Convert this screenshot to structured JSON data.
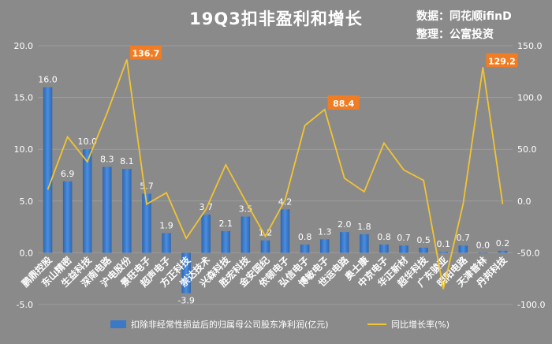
{
  "chart_data": {
    "type": "bar",
    "title": "19Q3扣非盈利和增长",
    "source_lines": [
      "数据：同花顺ifinD",
      "整理：公富投资"
    ],
    "categories": [
      "鹏鼎控股",
      "东山精密",
      "生益科技",
      "深南电路",
      "沪电股份",
      "景旺电子",
      "超声电子",
      "方正科技",
      "崇达技术",
      "兴森科技",
      "胜宏科技",
      "金安国纪",
      "依顿电子",
      "弘信电子",
      "博敏电子",
      "世运电路",
      "奥士康",
      "中京电子",
      "华正新材",
      "超华科技",
      "广东骏亚",
      "明阳电路",
      "天津普林",
      "丹邦科技"
    ],
    "series": [
      {
        "name": "扣除非经常性损益后的归属母公司股东净利润(亿元)",
        "axis": "left",
        "values": [
          16.0,
          6.9,
          10.0,
          8.3,
          8.1,
          5.7,
          1.9,
          -3.9,
          3.7,
          2.1,
          3.5,
          1.2,
          4.2,
          0.8,
          1.3,
          2.0,
          1.8,
          0.8,
          0.7,
          0.5,
          0.1,
          0.7,
          0.0,
          0.2
        ],
        "labels": [
          "16.0",
          "6.9",
          "10.0",
          "8.3",
          "8.1",
          "5.7",
          "1.9",
          "-3.9",
          "3.7",
          "2.1",
          "3.5",
          "1.2",
          "4.2",
          "0.8",
          "1.3",
          "2.0",
          "1.8",
          "0.8",
          "0.7",
          "0.5",
          "0.1",
          "0.7",
          "0.0",
          "0.2"
        ]
      },
      {
        "name": "同比增长率(%)",
        "axis": "right",
        "type": "line",
        "values": [
          11,
          62,
          38,
          85,
          136.7,
          -3,
          8,
          -36,
          -8,
          35,
          0,
          -34,
          1,
          73,
          88.4,
          22,
          9,
          56,
          30,
          20,
          -85,
          -3,
          129.2,
          -3
        ]
      }
    ],
    "highlight_labels": [
      {
        "index": 4,
        "text": "136.7"
      },
      {
        "index": 14,
        "text": "88.4"
      },
      {
        "index": 22,
        "text": "129.2"
      }
    ],
    "left_axis": {
      "min": -5,
      "max": 20,
      "ticks": [
        "-5.0",
        "0.0",
        "5.0",
        "10.0",
        "15.0",
        "20.0"
      ]
    },
    "right_axis": {
      "min": -100,
      "max": 150,
      "ticks": [
        "-100.0",
        "-50.0",
        "0.0",
        "50.0",
        "100.0",
        "150.0"
      ]
    },
    "grid": true,
    "legend_position": "bottom",
    "colors": {
      "background": "#8a8a8a",
      "bar": "#3a78c8",
      "line": "#f2c431",
      "highlight": "#f07d23",
      "text": "#ffffff",
      "grid": "#9c9c9c"
    }
  }
}
